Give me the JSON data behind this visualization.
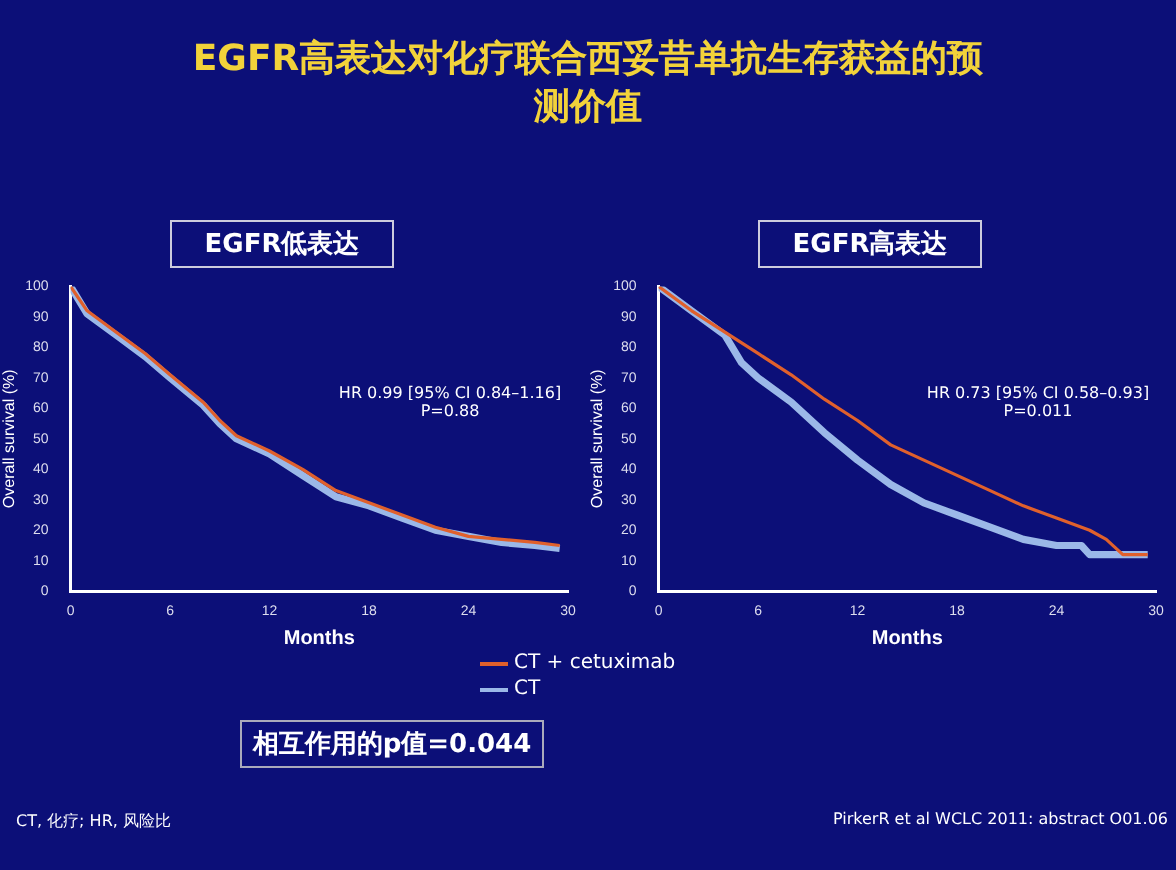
{
  "chart_data": [
    {
      "type": "line",
      "title": "EGFR低表达",
      "xlabel": "Months",
      "ylabel": "Overall survival (%)",
      "xlim": [
        0,
        30
      ],
      "xticks": [
        0,
        6,
        12,
        18,
        24,
        30
      ],
      "ylim": [
        0,
        100
      ],
      "yticks": [
        0,
        10,
        20,
        30,
        40,
        50,
        60,
        70,
        80,
        90,
        100
      ],
      "grid": false,
      "legend": "bottom",
      "marker": "none",
      "line_style": "solid",
      "series": [
        {
          "name": "CT + cetuximab",
          "color": "#e0602c",
          "x": [
            0,
            1,
            3,
            4.5,
            6,
            8,
            9,
            10,
            12,
            14,
            16,
            18,
            20,
            22,
            24,
            26,
            28,
            29.5
          ],
          "values": [
            100,
            92,
            84,
            78,
            71,
            62,
            56,
            51,
            46,
            40,
            33,
            29,
            25,
            21,
            18,
            17,
            16,
            15
          ]
        },
        {
          "name": "CT",
          "color": "#9bb8e8",
          "x": [
            0,
            1,
            3,
            4.5,
            6,
            8,
            9,
            10,
            12,
            14,
            16,
            18,
            20,
            22,
            24,
            26,
            28,
            29.5
          ],
          "values": [
            100,
            91,
            83,
            77,
            70,
            61,
            55,
            50,
            45,
            38,
            31,
            28,
            24,
            20,
            18,
            16,
            15,
            14
          ]
        }
      ],
      "annotations": [
        "EGFR高表达对化疗联合西妥昔单抗生存获益的预测价值",
        "HR 0.99 [95% CI 0.84–1.16]\nP=0.88",
        "相互作用的p值=0.044",
        "CT, 化疗; HR, 风险比"
      ]
    },
    {
      "type": "line",
      "title": "EGFR高表达",
      "xlabel": "Months",
      "ylabel": "Overall survival (%)",
      "xlim": [
        0,
        30
      ],
      "xticks": [
        0,
        6,
        12,
        18,
        24,
        30
      ],
      "ylim": [
        0,
        100
      ],
      "yticks": [
        0,
        10,
        20,
        30,
        40,
        50,
        60,
        70,
        80,
        90,
        100
      ],
      "grid": false,
      "marker": "none",
      "line_style": "solid",
      "series": [
        {
          "color": "#e0602c",
          "x": [
            0,
            2,
            4,
            6,
            8,
            10,
            12,
            14,
            16,
            18,
            20,
            22,
            24,
            26,
            27,
            28,
            29.5
          ],
          "values": [
            100,
            92,
            85,
            78,
            71,
            63,
            56,
            48,
            43,
            38,
            33,
            28,
            24,
            20,
            17,
            12,
            12
          ]
        },
        {
          "color": "#9bb8e8",
          "x": [
            0,
            2,
            4,
            5,
            6,
            8,
            10,
            12,
            14,
            16,
            18,
            20,
            22,
            24,
            25.5,
            26,
            28,
            29.5
          ],
          "values": [
            100,
            92,
            84,
            75,
            70,
            62,
            52,
            43,
            35,
            29,
            25,
            21,
            17,
            15,
            15,
            12,
            12,
            12
          ]
        }
      ],
      "annotations": [
        "HR 0.73 [95% CI 0.58–0.93]\nP=0.011",
        "PirkerR et al WCLC 2011: abstract O01.06"
      ]
    }
  ]
}
